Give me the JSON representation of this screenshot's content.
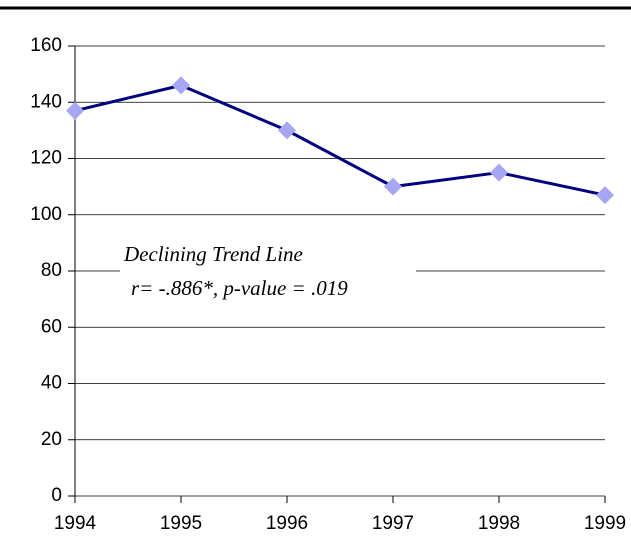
{
  "chart_data": {
    "type": "line",
    "categories": [
      "1994",
      "1995",
      "1996",
      "1997",
      "1998",
      "1999"
    ],
    "values": [
      137,
      146,
      130,
      110,
      115,
      107
    ],
    "color": "#000080",
    "marker_color": "#a6a6f2",
    "ylim": [
      0,
      160
    ],
    "yticks": [
      0,
      20,
      40,
      60,
      80,
      100,
      120,
      140,
      160
    ],
    "grid": true,
    "annotations": [
      "Declining Trend Line",
      "r= -.886*, p-value = .019"
    ]
  }
}
